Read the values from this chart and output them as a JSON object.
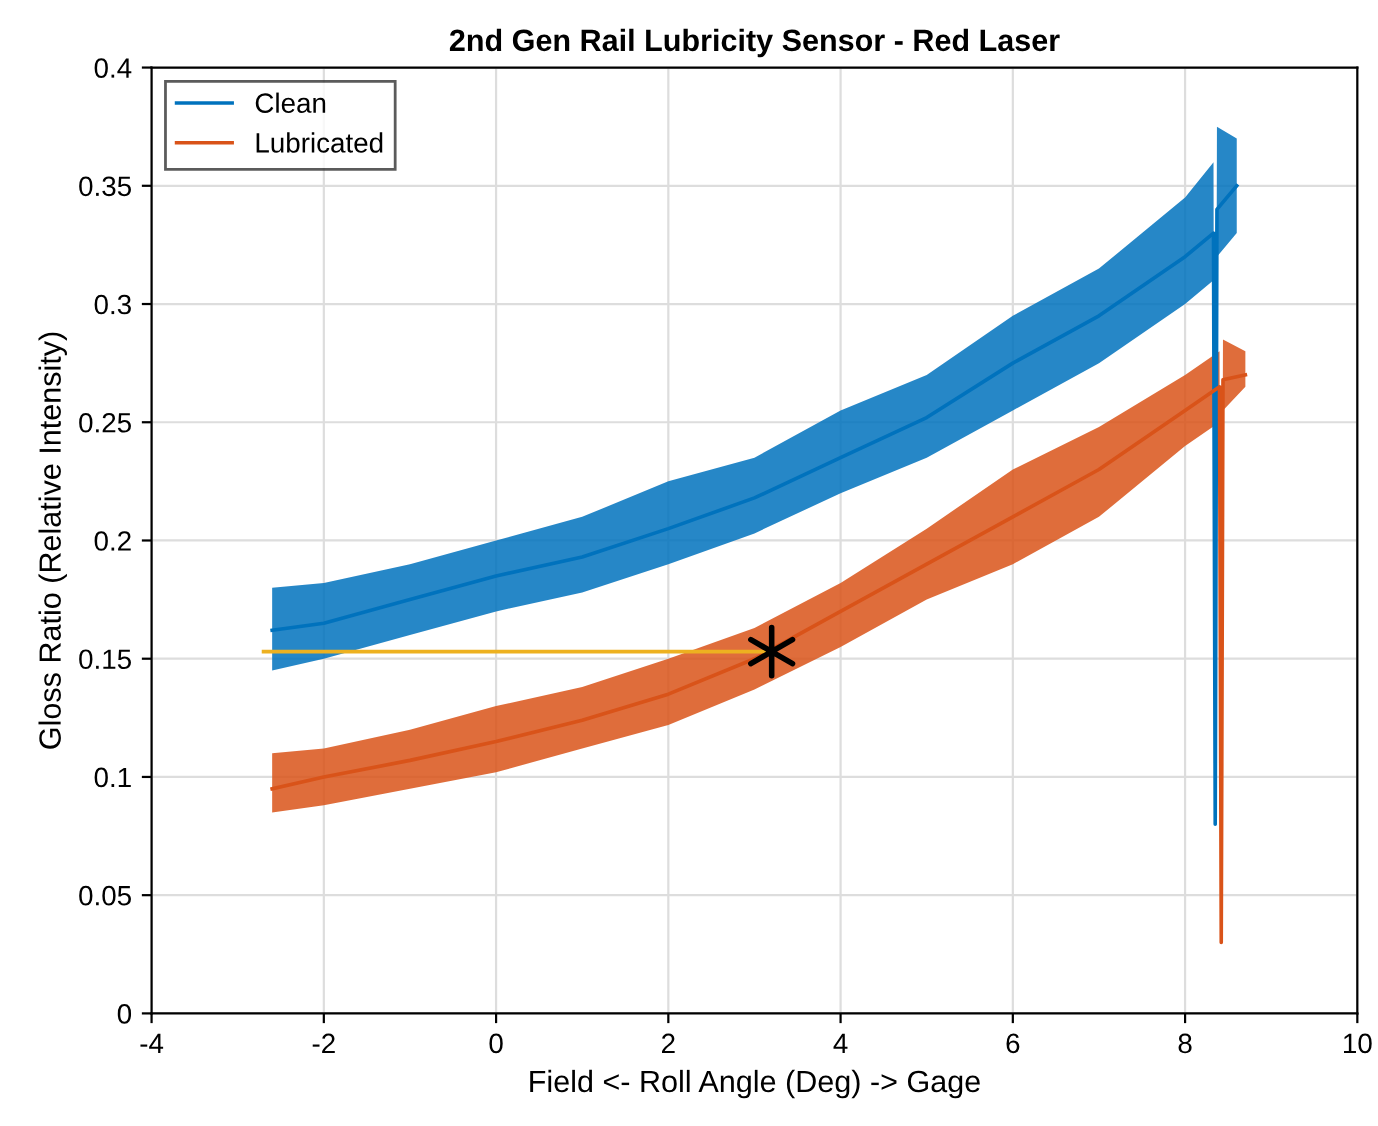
{
  "chart_data": {
    "type": "line",
    "title": "2nd Gen Rail Lubricity Sensor - Red Laser",
    "xlabel": "Field <- Roll Angle (Deg) -> Gage",
    "ylabel": "Gloss Ratio (Relative Intensity)",
    "xlim": [
      -4,
      10
    ],
    "xticks": [
      -4,
      -2,
      0,
      2,
      4,
      6,
      8,
      10
    ],
    "ylim": [
      0,
      0.4
    ],
    "yticks": [
      0,
      0.05,
      0.1,
      0.15,
      0.2,
      0.25,
      0.3,
      0.35,
      0.4
    ],
    "grid": true,
    "legend": "top left",
    "series": [
      {
        "name": "Clean",
        "color": "#0072bd",
        "x": [
          -2.6,
          -2,
          -1,
          0,
          1,
          2,
          3,
          4,
          5,
          6,
          7,
          8,
          8.33,
          8.35,
          8.37,
          8.6
        ],
        "values": [
          0.162,
          0.165,
          0.175,
          0.185,
          0.193,
          0.205,
          0.218,
          0.235,
          0.252,
          0.275,
          0.295,
          0.32,
          0.33,
          0.08,
          0.34,
          0.35
        ],
        "lower": [
          0.145,
          0.15,
          0.16,
          0.17,
          0.178,
          0.19,
          0.203,
          0.22,
          0.235,
          0.255,
          0.275,
          0.3,
          0.31,
          0.08,
          0.32,
          0.33
        ],
        "upper": [
          0.18,
          0.182,
          0.19,
          0.2,
          0.21,
          0.225,
          0.235,
          0.255,
          0.27,
          0.295,
          0.315,
          0.345,
          0.36,
          0.08,
          0.375,
          0.37
        ]
      },
      {
        "name": "Lubricated",
        "color": "#d95319",
        "x": [
          -2.6,
          -2,
          -1,
          0,
          1,
          2,
          3,
          4,
          5,
          6,
          7,
          8,
          8.4,
          8.42,
          8.44,
          8.7
        ],
        "values": [
          0.095,
          0.1,
          0.107,
          0.115,
          0.124,
          0.135,
          0.15,
          0.17,
          0.19,
          0.21,
          0.23,
          0.255,
          0.265,
          0.03,
          0.268,
          0.27
        ],
        "lower": [
          0.085,
          0.088,
          0.095,
          0.102,
          0.112,
          0.122,
          0.137,
          0.155,
          0.175,
          0.19,
          0.21,
          0.24,
          0.25,
          0.03,
          0.255,
          0.265
        ],
        "upper": [
          0.11,
          0.112,
          0.12,
          0.13,
          0.138,
          0.15,
          0.163,
          0.182,
          0.205,
          0.23,
          0.248,
          0.27,
          0.28,
          0.03,
          0.285,
          0.28
        ]
      },
      {
        "color": "#edb120",
        "x": [
          -2.7,
          3.2
        ],
        "values": [
          0.153,
          0.153
        ]
      },
      {
        "type": "scatter",
        "marker": "cross",
        "color": "#000000",
        "x": [
          3.2
        ],
        "values": [
          0.153
        ]
      }
    ]
  }
}
